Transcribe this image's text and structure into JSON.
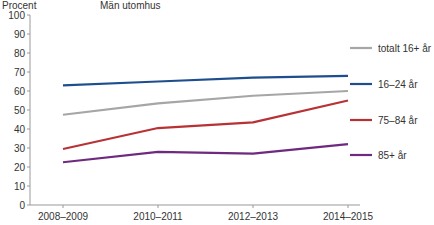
{
  "chart_data": {
    "type": "line",
    "title": "Män utomhus",
    "y_label": "Procent",
    "categories": [
      "2008–2009",
      "2010–2011",
      "2012–2013",
      "2014–2015"
    ],
    "series": [
      {
        "name": "totalt 16+ år",
        "color": "#a6a6a6",
        "values": [
          47.5,
          53.5,
          57.5,
          60
        ]
      },
      {
        "name": "16–24 år",
        "color": "#1f4e8f",
        "values": [
          63,
          65,
          67,
          68
        ]
      },
      {
        "name": "75–84 år",
        "color": "#b83235",
        "values": [
          29.5,
          40.5,
          43.5,
          55
        ]
      },
      {
        "name": "85+ år",
        "color": "#6e2a7e",
        "values": [
          22.5,
          28,
          27,
          32
        ]
      }
    ],
    "ylim": [
      0,
      100
    ],
    "yticks": [
      0,
      10,
      20,
      30,
      40,
      50,
      60,
      70,
      80,
      90,
      100
    ],
    "grid": false,
    "legend": "right"
  }
}
